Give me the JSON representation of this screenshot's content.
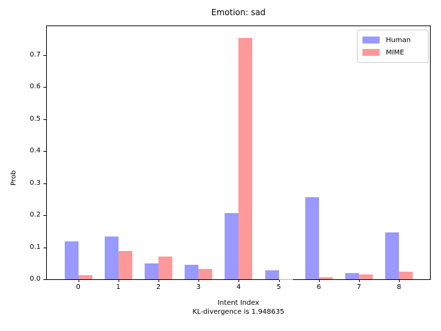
{
  "figure": {
    "title": "Emotion: sad",
    "ylabel": "Prob",
    "xlabel_line1": "Intent Index",
    "xlabel_line2": "KL-divergence is 1.948635"
  },
  "chart_data": {
    "type": "bar",
    "title": "Emotion: sad",
    "xlabel": "Intent Index",
    "caption": "KL-divergence is 1.948635",
    "ylabel": "Prob",
    "categories": [
      "0",
      "1",
      "2",
      "3",
      "4",
      "5",
      "6",
      "7",
      "8"
    ],
    "series": [
      {
        "name": "Human",
        "color": "#9999ff",
        "values": [
          0.118,
          0.134,
          0.05,
          0.045,
          0.207,
          0.028,
          0.257,
          0.02,
          0.146
        ]
      },
      {
        "name": "MIME",
        "color": "#ff9999",
        "values": [
          0.013,
          0.089,
          0.072,
          0.033,
          0.753,
          0.001,
          0.006,
          0.015,
          0.023
        ]
      }
    ],
    "kl_divergence": 1.948635,
    "yticks": [
      0.0,
      0.1,
      0.2,
      0.3,
      0.4,
      0.5,
      0.6,
      0.7
    ],
    "ylim": [
      0,
      0.79
    ],
    "grid": false,
    "legend_position": "upper right"
  }
}
